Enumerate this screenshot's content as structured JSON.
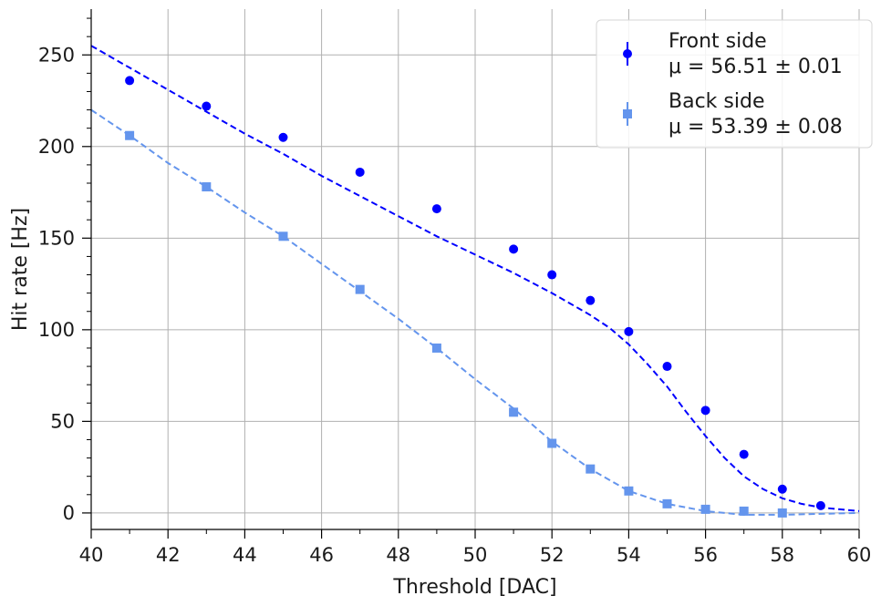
{
  "chart_data": {
    "type": "scatter",
    "xlabel": "Threshold [DAC]",
    "ylabel": "Hit rate [Hz]",
    "xlim": [
      40,
      60
    ],
    "ylim": [
      -9,
      275
    ],
    "xticks": [
      40,
      42,
      44,
      46,
      48,
      50,
      52,
      54,
      56,
      58,
      60
    ],
    "yticks": [
      0,
      50,
      100,
      150,
      200,
      250
    ],
    "grid": true,
    "legend_position": "top-right",
    "series": [
      {
        "name": "Front side",
        "annotation": "μ = 56.51 ± 0.01",
        "color": "#0000ff",
        "marker": "circle",
        "x": [
          41,
          43,
          45,
          47,
          49,
          51,
          52,
          53,
          54,
          55,
          56,
          57,
          58,
          59
        ],
        "y": [
          236,
          222,
          205,
          186,
          166,
          144,
          130,
          116,
          99,
          80,
          56,
          32,
          13,
          4
        ],
        "fit_x": [
          40,
          41,
          42,
          43,
          44,
          45,
          46,
          47,
          48,
          49,
          50,
          51,
          52,
          52.5,
          53,
          53.5,
          54,
          54.5,
          55,
          55.5,
          56,
          56.5,
          57,
          57.5,
          58,
          58.5,
          59,
          59.5,
          60
        ],
        "fit_y": [
          255,
          243,
          231,
          219,
          207,
          196,
          184,
          173,
          162,
          151,
          141,
          131,
          120,
          114,
          108,
          101,
          92,
          81,
          69,
          55,
          42,
          30,
          20,
          13,
          8,
          5,
          3,
          2,
          1
        ]
      },
      {
        "name": "Back side",
        "annotation": "μ = 53.39 ± 0.08",
        "color": "#6495ed",
        "marker": "square",
        "x": [
          41,
          43,
          45,
          47,
          49,
          51,
          52,
          53,
          54,
          55,
          56,
          57,
          58
        ],
        "y": [
          206,
          178,
          151,
          122,
          90,
          55,
          38,
          24,
          12,
          5,
          2,
          1,
          0
        ],
        "fit_x": [
          40,
          41,
          42,
          43,
          44,
          45,
          46,
          47,
          48,
          49,
          50,
          51,
          52,
          53,
          54,
          55,
          56,
          57,
          58,
          59,
          60
        ],
        "fit_y": [
          220,
          206,
          191,
          178,
          164,
          151,
          136,
          121,
          106,
          90,
          73,
          57,
          39,
          24,
          12,
          5,
          1,
          -1,
          -1,
          -0.5,
          0
        ]
      }
    ]
  }
}
